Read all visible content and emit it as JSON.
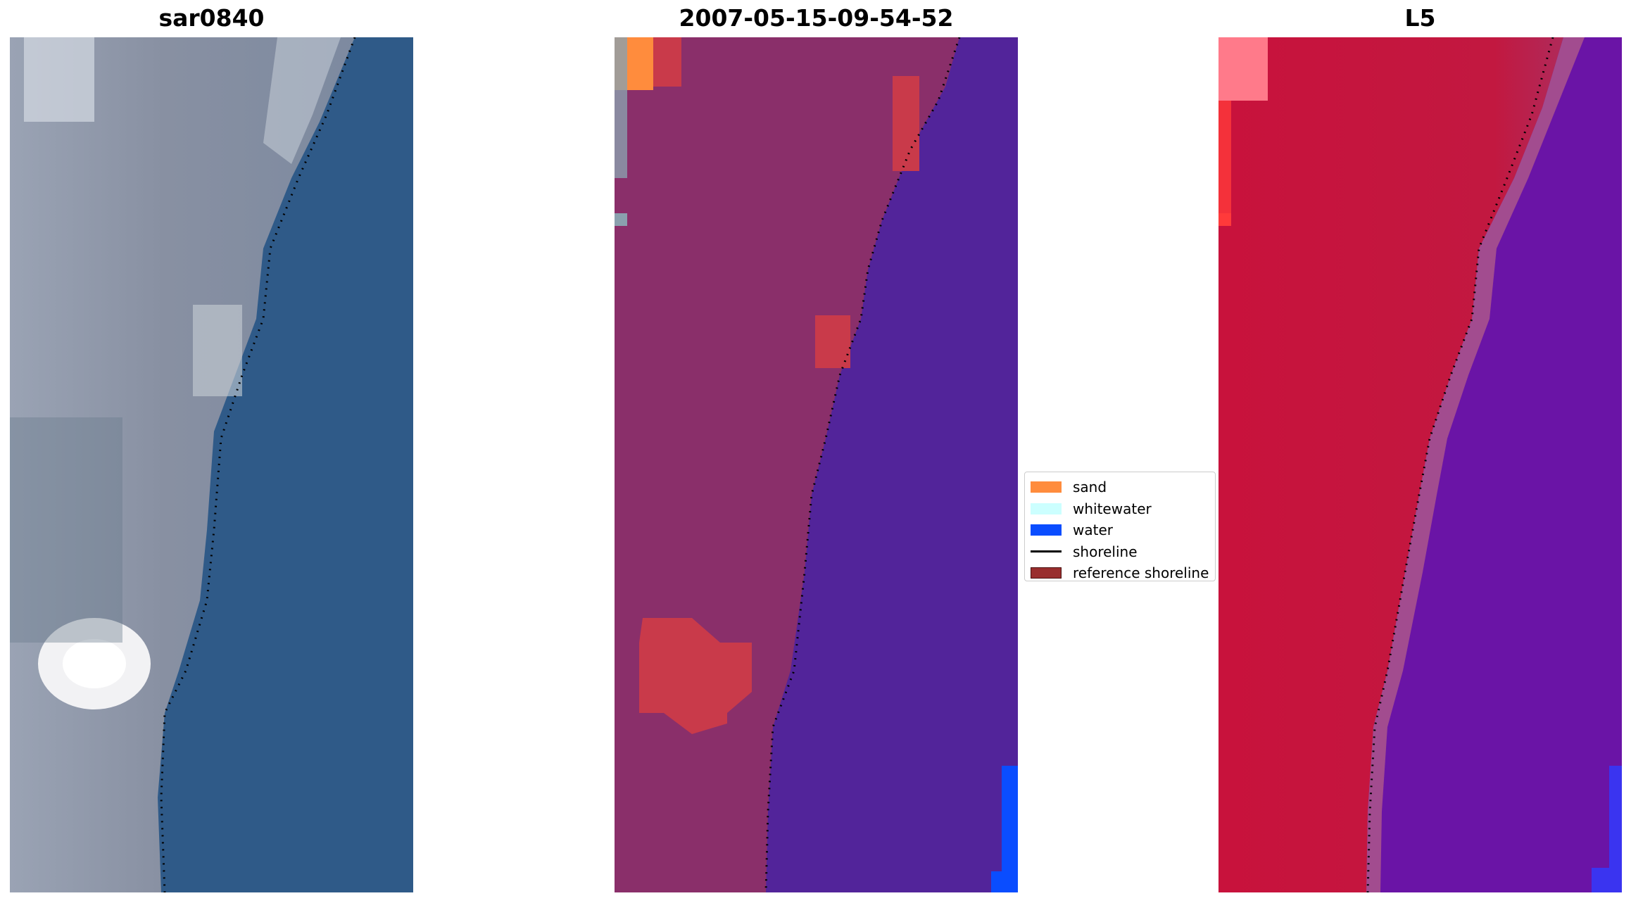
{
  "panels": [
    {
      "title": "sar0840",
      "kind": "rgb"
    },
    {
      "title": "2007-05-15-09-54-52",
      "kind": "classified"
    },
    {
      "title": "L5",
      "kind": "index"
    }
  ],
  "legend": {
    "items": [
      {
        "label": "sand",
        "type": "patch",
        "color": "#ff8c3d"
      },
      {
        "label": "whitewater",
        "type": "patch",
        "color": "#ccffff"
      },
      {
        "label": "water",
        "type": "patch",
        "color": "#0a4dff"
      },
      {
        "label": "shoreline",
        "type": "line",
        "color": "#000000"
      },
      {
        "label": "reference shoreline",
        "type": "patch",
        "color": "#992e2e"
      }
    ]
  },
  "colors": {
    "sar_land": "#8a93a6",
    "sar_water": "#2f5a88",
    "classified_land": "#8a2f6a",
    "classified_water": "#52249a",
    "index_land": "#c8123c",
    "index_water": "#6a14a6",
    "shoreline_dots": "#000000"
  }
}
